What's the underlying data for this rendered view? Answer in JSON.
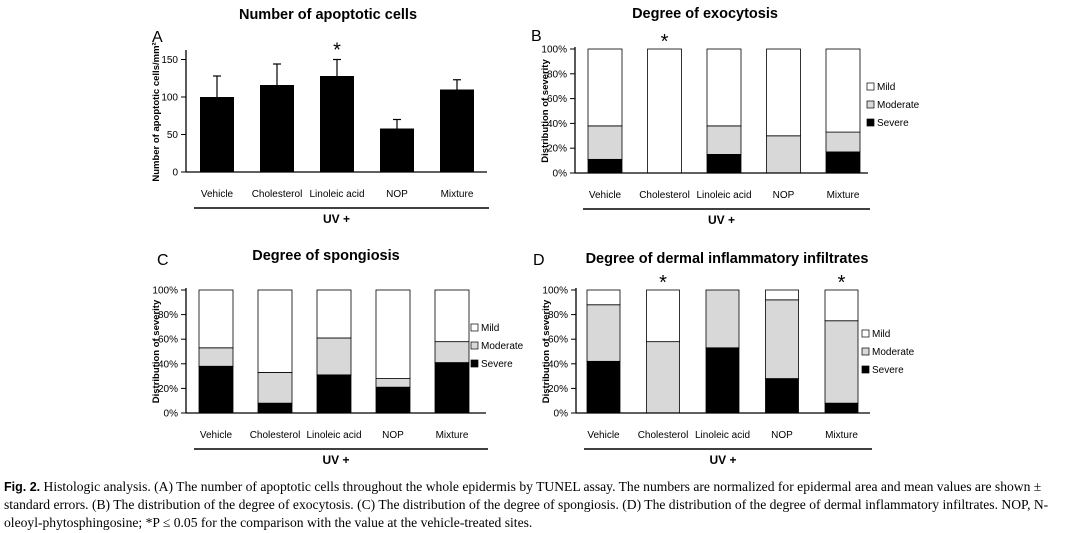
{
  "figure": {
    "caption_label": "Fig. 2.",
    "caption_text": " Histologic analysis. (A) The number of apoptotic cells throughout the whole epidermis by TUNEL assay. The numbers are normalized for epidermal area and mean values are shown ± standard errors. (B) The distribution of the degree of exocytosis. (C) The distribution of the degree of spongiosis. (D) The distribution of the degree of dermal inflammatory infiltrates. NOP, N-oleoyl-phytosphingosine; *P ≤ 0.05 for the comparison with the value at the vehicle-treated sites."
  },
  "chart_data": [
    {
      "panel": "A",
      "type": "bar",
      "title": "Number of apoptotic cells",
      "ylabel": "Number of apoptotic cells/mm²",
      "group_label": "UV +",
      "categories": [
        "Vehicle",
        "Cholesterol",
        "Linoleic acid",
        "NOP",
        "Mixture"
      ],
      "values": [
        100,
        116,
        128,
        58,
        110
      ],
      "errors": [
        28,
        28,
        22,
        12,
        13
      ],
      "significant": [
        false,
        false,
        true,
        false,
        false
      ],
      "ylim": [
        0,
        160
      ],
      "yticks": [
        "0",
        "50",
        "100",
        "150"
      ],
      "colors": {
        "bar": "#000000"
      }
    },
    {
      "panel": "B",
      "type": "bar",
      "stacked": true,
      "title": "Degree of exocytosis",
      "ylabel": "Distribution of severity",
      "group_label": "UV +",
      "categories": [
        "Vehicle",
        "Cholesterol",
        "Linoleic acid",
        "NOP",
        "Mixture"
      ],
      "series": [
        {
          "name": "Severe",
          "values": [
            11,
            0,
            15,
            0,
            17
          ]
        },
        {
          "name": "Moderate",
          "values": [
            27,
            0,
            23,
            30,
            16
          ]
        },
        {
          "name": "Mild",
          "values": [
            62,
            100,
            62,
            70,
            67
          ]
        }
      ],
      "significant": [
        false,
        true,
        false,
        false,
        false
      ],
      "ylim": [
        0,
        100
      ],
      "yticks": [
        "0%",
        "20%",
        "40%",
        "60%",
        "80%",
        "100%"
      ],
      "legend_position": "right",
      "colors": {
        "Severe": "#000000",
        "Moderate": "#d8d8d8",
        "Mild": "#ffffff"
      }
    },
    {
      "panel": "C",
      "type": "bar",
      "stacked": true,
      "title": "Degree of spongiosis",
      "ylabel": "Distribution of severity",
      "group_label": "UV +",
      "categories": [
        "Vehicle",
        "Cholesterol",
        "Linoleic acid",
        "NOP",
        "Mixture"
      ],
      "series": [
        {
          "name": "Severe",
          "values": [
            38,
            8,
            31,
            21,
            41
          ]
        },
        {
          "name": "Moderate",
          "values": [
            15,
            25,
            30,
            7,
            17
          ]
        },
        {
          "name": "Mild",
          "values": [
            47,
            67,
            39,
            72,
            42
          ]
        }
      ],
      "significant": [
        false,
        false,
        false,
        false,
        false
      ],
      "ylim": [
        0,
        100
      ],
      "yticks": [
        "0%",
        "20%",
        "40%",
        "60%",
        "80%",
        "100%"
      ],
      "legend_position": "right",
      "colors": {
        "Severe": "#000000",
        "Moderate": "#d8d8d8",
        "Mild": "#ffffff"
      }
    },
    {
      "panel": "D",
      "type": "bar",
      "stacked": true,
      "title": "Degree of dermal inflammatory infiltrates",
      "ylabel": "Distribution of severity",
      "group_label": "UV +",
      "categories": [
        "Vehicle",
        "Cholesterol",
        "Linoleic acid",
        "NOP",
        "Mixture"
      ],
      "series": [
        {
          "name": "Severe",
          "values": [
            42,
            0,
            53,
            28,
            8
          ]
        },
        {
          "name": "Moderate",
          "values": [
            46,
            58,
            47,
            64,
            67
          ]
        },
        {
          "name": "Mild",
          "values": [
            12,
            42,
            0,
            8,
            25
          ]
        }
      ],
      "significant": [
        false,
        true,
        false,
        false,
        true
      ],
      "ylim": [
        0,
        100
      ],
      "yticks": [
        "0%",
        "20%",
        "40%",
        "60%",
        "80%",
        "100%"
      ],
      "legend_position": "right",
      "colors": {
        "Severe": "#000000",
        "Moderate": "#d8d8d8",
        "Mild": "#ffffff"
      }
    }
  ]
}
